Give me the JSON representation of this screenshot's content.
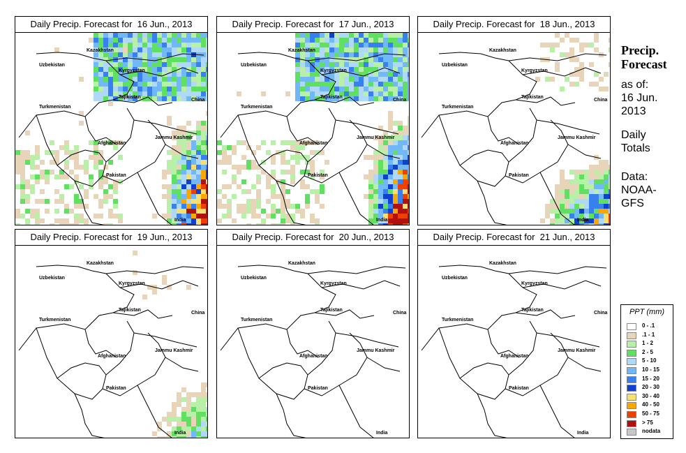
{
  "panels": [
    {
      "title": "Daily Precip. Forecast for  16 Jun., 2013",
      "intensity": 1.0,
      "focus": "heavy-east"
    },
    {
      "title": "Daily Precip. Forecast for  17 Jun., 2013",
      "intensity": 1.0,
      "focus": "heavy-east"
    },
    {
      "title": "Daily Precip. Forecast for  18 Jun., 2013",
      "intensity": 0.8,
      "focus": "southeast"
    },
    {
      "title": "Daily Precip. Forecast for  19 Jun., 2013",
      "intensity": 0.55,
      "focus": "southeast"
    },
    {
      "title": "Daily Precip. Forecast for  20 Jun., 2013",
      "intensity": 0.3,
      "focus": "light"
    },
    {
      "title": "Daily Precip. Forecast for  21 Jun., 2013",
      "intensity": 0.25,
      "focus": "light"
    }
  ],
  "map_labels": [
    "Kazakhstan",
    "Uzbekistan",
    "Kyrgyzstan",
    "Tajikistan",
    "China",
    "Turkmenistan",
    "Afghanistan",
    "Jammu Kashmir",
    "Pakistan",
    "India"
  ],
  "sidebar": {
    "title_line1": "Precip.",
    "title_line2": "Forecast",
    "asof_line1": "as of:",
    "asof_line2": "16 Jun.",
    "asof_line3": "2013",
    "totals_line1": "Daily",
    "totals_line2": "Totals",
    "data_line1": "Data:",
    "data_line2": "NOAA-",
    "data_line3": "GFS"
  },
  "legend": {
    "title": "PPT (mm)",
    "items": [
      {
        "label": "0 - .1",
        "color": "#ffffff"
      },
      {
        "label": ".1 - 1",
        "color": "#e8d4b8"
      },
      {
        "label": "1 - 2",
        "color": "#b8f0a8"
      },
      {
        "label": "2 - 5",
        "color": "#60e060"
      },
      {
        "label": "5 - 10",
        "color": "#b0d8f8"
      },
      {
        "label": "10 - 15",
        "color": "#70b8f8"
      },
      {
        "label": "15 - 20",
        "color": "#3880f0"
      },
      {
        "label": "20 - 30",
        "color": "#1040d0"
      },
      {
        "label": "30 - 40",
        "color": "#f8e070"
      },
      {
        "label": "40 - 50",
        "color": "#f8a800"
      },
      {
        "label": "50 - 75",
        "color": "#f04000"
      },
      {
        "label": "> 75",
        "color": "#b01010"
      },
      {
        "label": "nodata",
        "color": "#c8c8c8"
      }
    ]
  }
}
